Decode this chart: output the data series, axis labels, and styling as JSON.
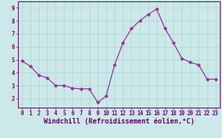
{
  "x": [
    0,
    1,
    2,
    3,
    4,
    5,
    6,
    7,
    8,
    9,
    10,
    11,
    12,
    13,
    14,
    15,
    16,
    17,
    18,
    19,
    20,
    21,
    22,
    23
  ],
  "y": [
    4.9,
    4.5,
    3.8,
    3.6,
    3.0,
    3.0,
    2.8,
    2.75,
    2.75,
    1.7,
    2.2,
    4.6,
    6.3,
    7.4,
    8.0,
    8.5,
    8.9,
    7.4,
    6.3,
    5.1,
    4.8,
    4.6,
    3.5,
    3.5
  ],
  "line_color": "#993399",
  "marker": "D",
  "marker_size": 2.5,
  "xlim": [
    -0.5,
    23.5
  ],
  "ylim": [
    1.3,
    9.5
  ],
  "yticks": [
    2,
    3,
    4,
    5,
    6,
    7,
    8,
    9
  ],
  "xticks": [
    0,
    1,
    2,
    3,
    4,
    5,
    6,
    7,
    8,
    9,
    10,
    11,
    12,
    13,
    14,
    15,
    16,
    17,
    18,
    19,
    20,
    21,
    22,
    23
  ],
  "xlabel": "Windchill (Refroidissement éolien,°C)",
  "grid_color": "#aad8d8",
  "bg_color": "#cce8e8",
  "tick_label_color": "#660066",
  "xlabel_color": "#660066",
  "tick_fontsize": 5.5,
  "xlabel_fontsize": 7.0,
  "linewidth": 1.0
}
